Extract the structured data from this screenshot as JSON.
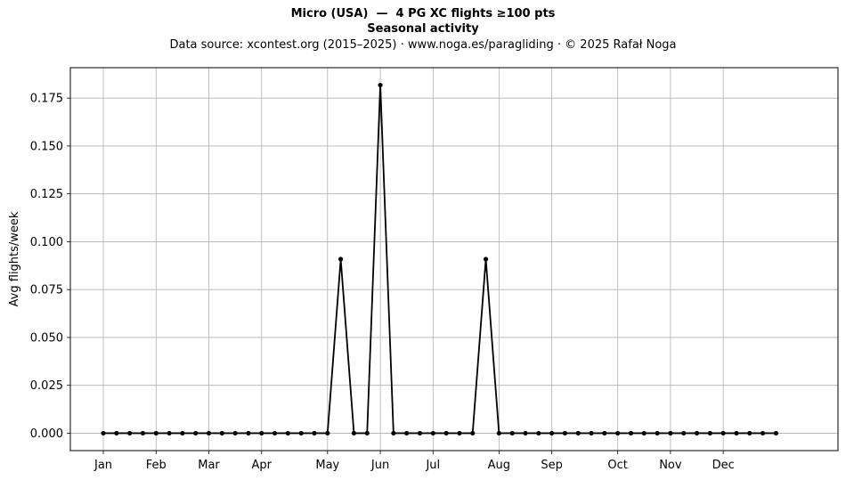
{
  "chart_data": {
    "type": "line",
    "title": "Micro (USA)  —  4 PG XC flights ≥100 pts",
    "subtitle": "Seasonal activity",
    "source_note": "Data source: xcontest.org (2015–2025)  ·  www.noga.es/paragliding  ·  © 2025 Rafał Noga",
    "xlabel": "",
    "ylabel": "Avg flights/week",
    "x_ticks": [
      "Jan",
      "Feb",
      "Mar",
      "Apr",
      "May",
      "Jun",
      "Jul",
      "Aug",
      "Sep",
      "Oct",
      "Nov",
      "Dec"
    ],
    "x_tick_weeks": [
      1,
      5,
      9,
      13,
      18,
      22,
      26,
      31,
      35,
      40,
      44,
      48
    ],
    "y_ticks": [
      "0.000",
      "0.025",
      "0.050",
      "0.075",
      "0.100",
      "0.125",
      "0.150",
      "0.175"
    ],
    "ylim": [
      -0.0091,
      0.1909
    ],
    "xlim": [
      -1.5,
      56.7
    ],
    "grid": true,
    "series": [
      {
        "color": "#000000",
        "x": [
          1,
          2,
          3,
          4,
          5,
          6,
          7,
          8,
          9,
          10,
          11,
          12,
          13,
          14,
          15,
          16,
          17,
          18,
          19,
          20,
          21,
          22,
          23,
          24,
          25,
          26,
          27,
          28,
          29,
          30,
          31,
          32,
          33,
          34,
          35,
          36,
          37,
          38,
          39,
          40,
          41,
          42,
          43,
          44,
          45,
          46,
          47,
          48,
          49,
          50,
          51,
          52
        ],
        "y": [
          0,
          0,
          0,
          0,
          0,
          0,
          0,
          0,
          0,
          0,
          0,
          0,
          0,
          0,
          0,
          0,
          0,
          0,
          0.0909,
          0,
          0,
          0.1818,
          0,
          0,
          0,
          0,
          0,
          0,
          0,
          0.0909,
          0,
          0,
          0,
          0,
          0,
          0,
          0,
          0,
          0,
          0,
          0,
          0,
          0,
          0,
          0,
          0,
          0,
          0,
          0,
          0,
          0,
          0
        ]
      }
    ]
  }
}
